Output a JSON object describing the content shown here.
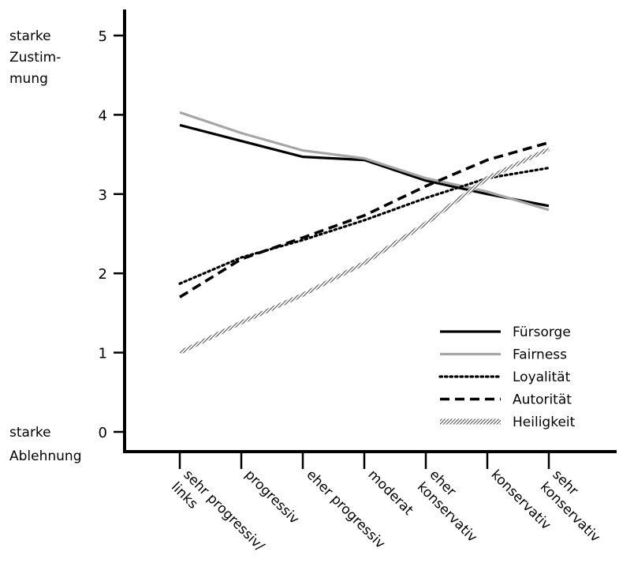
{
  "chart_data": {
    "type": "line",
    "categories": [
      "sehr progressiv/ links",
      "progressiv",
      "eher progressiv",
      "moderat",
      "eher konservativ",
      "konservativ",
      "sehr konservativ"
    ],
    "category_lines": [
      [
        "sehr progressiv/",
        "links"
      ],
      [
        "progressiv"
      ],
      [
        "eher progressiv"
      ],
      [
        "moderat"
      ],
      [
        "eher",
        "konservativ"
      ],
      [
        "konservativ"
      ],
      [
        "sehr",
        "konservativ"
      ]
    ],
    "ylim": [
      0,
      5
    ],
    "yticks": [
      0,
      1,
      2,
      3,
      4,
      5
    ],
    "y_top_label": [
      "starke",
      "Zustim-",
      "mung"
    ],
    "y_bottom_label": [
      "starke",
      "Ablehnung"
    ],
    "legend_position": "bottom-right",
    "series": [
      {
        "name": "Fürsorge",
        "style": "solid",
        "color": "#000000",
        "values": [
          3.87,
          3.67,
          3.47,
          3.43,
          3.17,
          3.0,
          2.85
        ]
      },
      {
        "name": "Fairness",
        "style": "solid",
        "color": "#a6a6a6",
        "values": [
          4.03,
          3.77,
          3.55,
          3.45,
          3.2,
          3.03,
          2.8
        ]
      },
      {
        "name": "Loyalität",
        "style": "dotted",
        "color": "#000000",
        "values": [
          1.87,
          2.2,
          2.42,
          2.67,
          2.95,
          3.2,
          3.33
        ]
      },
      {
        "name": "Autorität",
        "style": "dashed",
        "color": "#000000",
        "values": [
          1.7,
          2.18,
          2.45,
          2.73,
          3.1,
          3.43,
          3.65
        ]
      },
      {
        "name": "Heiligkeit",
        "style": "hatched",
        "color": "#777777",
        "values": [
          1.0,
          1.38,
          1.73,
          2.13,
          2.63,
          3.2,
          3.57
        ]
      }
    ]
  }
}
